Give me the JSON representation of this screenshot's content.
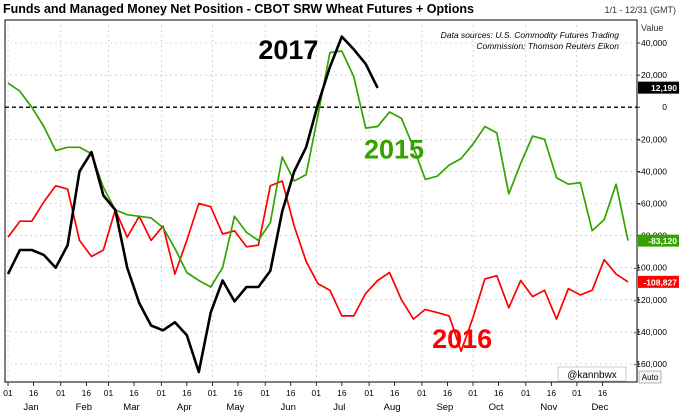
{
  "header": {
    "title": "Funds and Managed Money Net Position - CBOT SRW Wheat Futures + Options",
    "date_range": "1/1 - 12/31 (GMT)"
  },
  "source_note": {
    "line1": "Data sources: U.S. Commodity Futures Trading",
    "line2": "Commission; Thomson Reuters Eikon"
  },
  "axis": {
    "y_header": "Value",
    "auto_button": "Auto"
  },
  "watermark": "@kannbwx",
  "colors": {
    "s2017": "#000000",
    "s2015": "#33a300",
    "s2016": "#ff0000",
    "grid": "#b8b8b8",
    "zero_line": "#000000",
    "frame": "#000000"
  },
  "chart_data": {
    "type": "line",
    "title": "Funds and Managed Money Net Position - CBOT SRW Wheat Futures + Options",
    "xlabel": "",
    "ylabel": "",
    "x_unit": "weekly, day of year (1 Jan = 1)",
    "xlim": [
      1,
      365
    ],
    "ylim": [
      -170000,
      53000
    ],
    "y_ticks": [
      40000,
      20000,
      0,
      -20000,
      -40000,
      -60000,
      -80000,
      -100000,
      -120000,
      -140000,
      -160000
    ],
    "y_tick_labels": [
      "40,000",
      "20,000",
      "0",
      "-20,000",
      "-40,000",
      "-60,000",
      "-80,000",
      "-100,000",
      "-120,000",
      "-140,000",
      "-160,000"
    ],
    "x_ticks": [
      {
        "day": 1,
        "day_label": "01",
        "month_label": "Jan"
      },
      {
        "day": 16,
        "day_label": "16",
        "month_label": ""
      },
      {
        "day": 32,
        "day_label": "01",
        "month_label": "Feb"
      },
      {
        "day": 47,
        "day_label": "16",
        "month_label": ""
      },
      {
        "day": 60,
        "day_label": "01",
        "month_label": "Mar"
      },
      {
        "day": 75,
        "day_label": "16",
        "month_label": ""
      },
      {
        "day": 91,
        "day_label": "01",
        "month_label": "Apr"
      },
      {
        "day": 106,
        "day_label": "16",
        "month_label": ""
      },
      {
        "day": 121,
        "day_label": "01",
        "month_label": "May"
      },
      {
        "day": 136,
        "day_label": "16",
        "month_label": ""
      },
      {
        "day": 152,
        "day_label": "01",
        "month_label": "Jun"
      },
      {
        "day": 167,
        "day_label": "16",
        "month_label": ""
      },
      {
        "day": 182,
        "day_label": "01",
        "month_label": "Jul"
      },
      {
        "day": 197,
        "day_label": "16",
        "month_label": ""
      },
      {
        "day": 213,
        "day_label": "01",
        "month_label": "Aug"
      },
      {
        "day": 228,
        "day_label": "16",
        "month_label": ""
      },
      {
        "day": 244,
        "day_label": "01",
        "month_label": "Sep"
      },
      {
        "day": 259,
        "day_label": "16",
        "month_label": ""
      },
      {
        "day": 274,
        "day_label": "01",
        "month_label": "Oct"
      },
      {
        "day": 289,
        "day_label": "16",
        "month_label": ""
      },
      {
        "day": 305,
        "day_label": "01",
        "month_label": "Nov"
      },
      {
        "day": 320,
        "day_label": "16",
        "month_label": ""
      },
      {
        "day": 335,
        "day_label": "01",
        "month_label": "Dec"
      },
      {
        "day": 350,
        "day_label": "16",
        "month_label": ""
      }
    ],
    "zero_line": true,
    "grid": true,
    "series": [
      {
        "name": "2017",
        "color_key": "s2017",
        "label_day": 148,
        "label_value": 30000,
        "current_value": 12190,
        "current_label": "12,190",
        "points": [
          [
            1,
            -104000
          ],
          [
            8,
            -89000
          ],
          [
            15,
            -89000
          ],
          [
            22,
            -92000
          ],
          [
            29,
            -100000
          ],
          [
            36,
            -86000
          ],
          [
            43,
            -40000
          ],
          [
            50,
            -28000
          ],
          [
            57,
            -55000
          ],
          [
            64,
            -64000
          ],
          [
            71,
            -100000
          ],
          [
            78,
            -122000
          ],
          [
            85,
            -136000
          ],
          [
            92,
            -139000
          ],
          [
            99,
            -134000
          ],
          [
            106,
            -142000
          ],
          [
            113,
            -165000
          ],
          [
            120,
            -128000
          ],
          [
            127,
            -108000
          ],
          [
            134,
            -121000
          ],
          [
            141,
            -112000
          ],
          [
            148,
            -112000
          ],
          [
            155,
            -102000
          ],
          [
            162,
            -65000
          ],
          [
            169,
            -40000
          ],
          [
            176,
            -25000
          ],
          [
            183,
            2000
          ],
          [
            190,
            25000
          ],
          [
            197,
            44000
          ],
          [
            204,
            36000
          ],
          [
            211,
            27000
          ],
          [
            218,
            12000
          ]
        ]
      },
      {
        "name": "2015",
        "color_key": "s2015",
        "label_day": 210,
        "label_value": -32000,
        "current_value": -83120,
        "current_label": "-83,120",
        "points": [
          [
            1,
            15000
          ],
          [
            8,
            10000
          ],
          [
            15,
            0
          ],
          [
            22,
            -12000
          ],
          [
            29,
            -27000
          ],
          [
            36,
            -25000
          ],
          [
            43,
            -25000
          ],
          [
            50,
            -29000
          ],
          [
            57,
            -50000
          ],
          [
            64,
            -64000
          ],
          [
            71,
            -67000
          ],
          [
            78,
            -68000
          ],
          [
            85,
            -69000
          ],
          [
            92,
            -75000
          ],
          [
            99,
            -88000
          ],
          [
            106,
            -103000
          ],
          [
            113,
            -108000
          ],
          [
            120,
            -112000
          ],
          [
            127,
            -100000
          ],
          [
            134,
            -68000
          ],
          [
            141,
            -78000
          ],
          [
            148,
            -83000
          ],
          [
            155,
            -72000
          ],
          [
            162,
            -31000
          ],
          [
            169,
            -46000
          ],
          [
            176,
            -42000
          ],
          [
            183,
            -5000
          ],
          [
            190,
            34000
          ],
          [
            197,
            35000
          ],
          [
            204,
            19000
          ],
          [
            211,
            -13000
          ],
          [
            218,
            -12000
          ],
          [
            225,
            -3000
          ],
          [
            232,
            -7000
          ],
          [
            239,
            -25000
          ],
          [
            246,
            -45000
          ],
          [
            253,
            -43000
          ],
          [
            260,
            -36000
          ],
          [
            267,
            -32000
          ],
          [
            274,
            -23000
          ],
          [
            281,
            -12000
          ],
          [
            288,
            -16000
          ],
          [
            295,
            -54000
          ],
          [
            302,
            -35000
          ],
          [
            309,
            -18000
          ],
          [
            316,
            -20000
          ],
          [
            323,
            -44000
          ],
          [
            330,
            -48000
          ],
          [
            337,
            -47000
          ],
          [
            344,
            -77000
          ],
          [
            351,
            -70000
          ],
          [
            358,
            -48000
          ],
          [
            365,
            -83120
          ]
        ]
      },
      {
        "name": "2016",
        "color_key": "s2016",
        "label_day": 250,
        "label_value": -150000,
        "current_value": -108827,
        "current_label": "-108,827",
        "points": [
          [
            1,
            -81000
          ],
          [
            8,
            -71000
          ],
          [
            15,
            -71000
          ],
          [
            22,
            -59000
          ],
          [
            29,
            -49000
          ],
          [
            36,
            -51000
          ],
          [
            43,
            -83000
          ],
          [
            50,
            -93000
          ],
          [
            57,
            -89000
          ],
          [
            64,
            -64000
          ],
          [
            71,
            -81000
          ],
          [
            78,
            -68000
          ],
          [
            85,
            -83000
          ],
          [
            92,
            -74000
          ],
          [
            99,
            -104000
          ],
          [
            106,
            -83000
          ],
          [
            113,
            -60000
          ],
          [
            120,
            -62000
          ],
          [
            127,
            -79000
          ],
          [
            134,
            -77000
          ],
          [
            141,
            -87000
          ],
          [
            148,
            -86000
          ],
          [
            155,
            -49000
          ],
          [
            162,
            -46000
          ],
          [
            169,
            -74000
          ],
          [
            176,
            -96000
          ],
          [
            183,
            -110000
          ],
          [
            190,
            -114000
          ],
          [
            197,
            -130000
          ],
          [
            204,
            -130000
          ],
          [
            211,
            -116000
          ],
          [
            218,
            -108000
          ],
          [
            225,
            -103000
          ],
          [
            232,
            -120000
          ],
          [
            239,
            -132000
          ],
          [
            246,
            -126000
          ],
          [
            253,
            -128000
          ],
          [
            260,
            -130000
          ],
          [
            267,
            -152000
          ],
          [
            274,
            -131000
          ],
          [
            281,
            -107000
          ],
          [
            288,
            -105000
          ],
          [
            295,
            -125000
          ],
          [
            302,
            -108000
          ],
          [
            309,
            -118000
          ],
          [
            316,
            -114000
          ],
          [
            323,
            -132000
          ],
          [
            330,
            -113000
          ],
          [
            337,
            -117000
          ],
          [
            344,
            -114000
          ],
          [
            351,
            -95000
          ],
          [
            358,
            -104000
          ],
          [
            365,
            -108827
          ]
        ]
      }
    ]
  }
}
